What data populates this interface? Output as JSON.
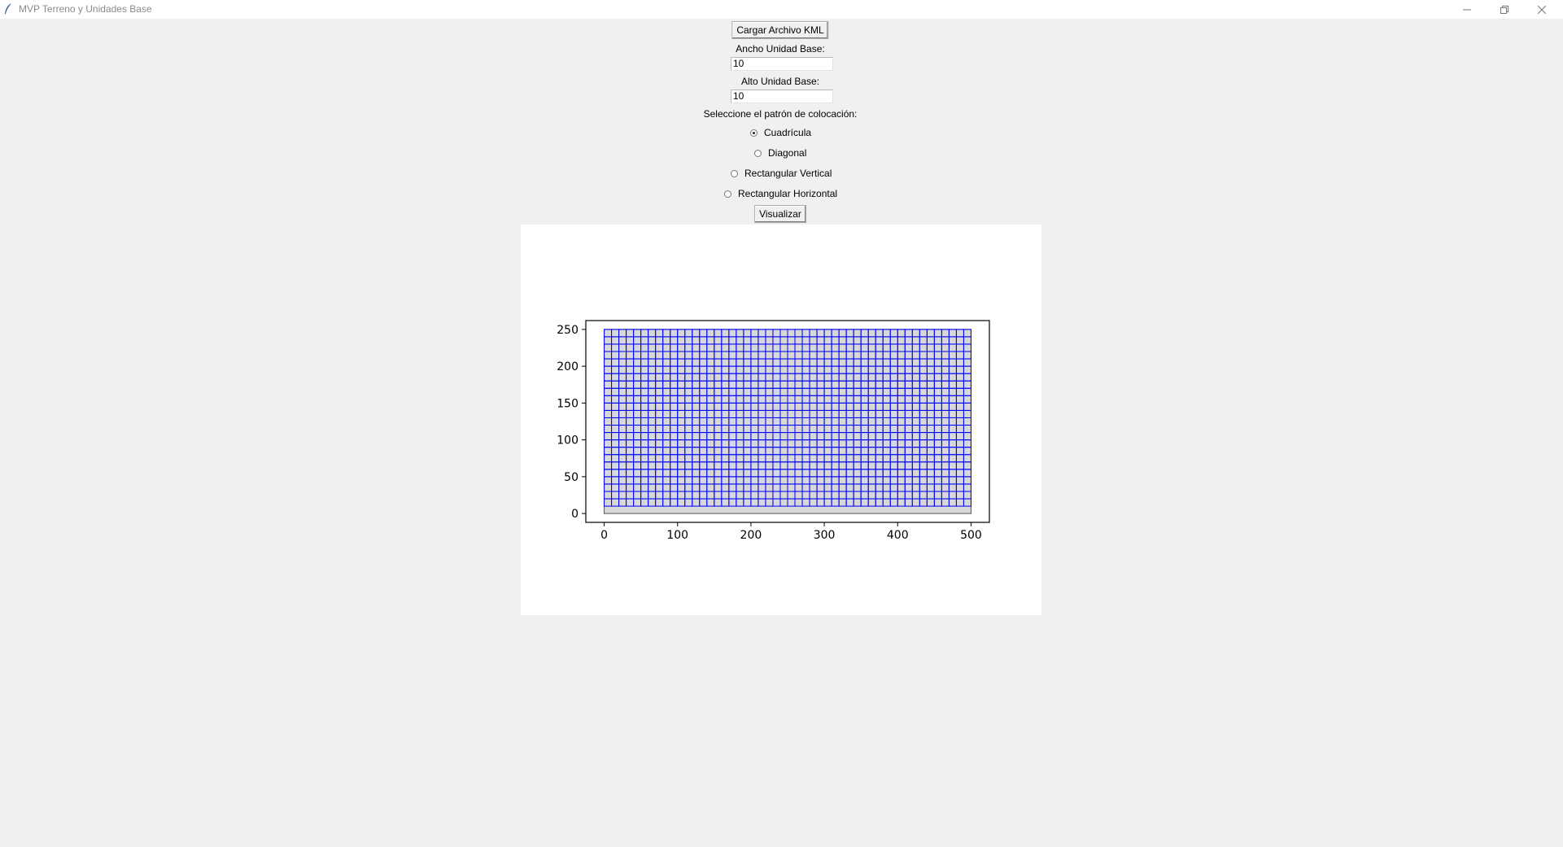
{
  "window": {
    "title": "MVP Terreno y Unidades Base",
    "icon": "feather-icon"
  },
  "controls": {
    "load_button": "Cargar Archivo KML",
    "width_label": "Ancho Unidad Base:",
    "width_value": "10",
    "height_label": "Alto Unidad Base:",
    "height_value": "10",
    "pattern_label": "Seleccione el patrón de colocación:",
    "patterns": [
      {
        "label": "Cuadrícula",
        "selected": true
      },
      {
        "label": "Diagonal",
        "selected": false
      },
      {
        "label": "Rectangular Vertical",
        "selected": false
      },
      {
        "label": "Rectangular Horizontal",
        "selected": false
      }
    ],
    "visualize_button": "Visualizar"
  },
  "chart_data": {
    "type": "grid-layout",
    "xlim": [
      -25,
      525
    ],
    "ylim": [
      -12,
      262
    ],
    "xticks": [
      0,
      100,
      200,
      300,
      400,
      500
    ],
    "yticks": [
      0,
      50,
      100,
      150,
      200,
      250
    ],
    "terrain": {
      "x0": 0,
      "y0": 0,
      "x1": 500,
      "y1": 250,
      "fill": "#d8d8d8",
      "edge": "#555555"
    },
    "units": {
      "width": 10,
      "height": 10,
      "cols": 50,
      "rows": 24,
      "origin_x": 0,
      "origin_y": 10,
      "edge": "#0000ff"
    }
  }
}
